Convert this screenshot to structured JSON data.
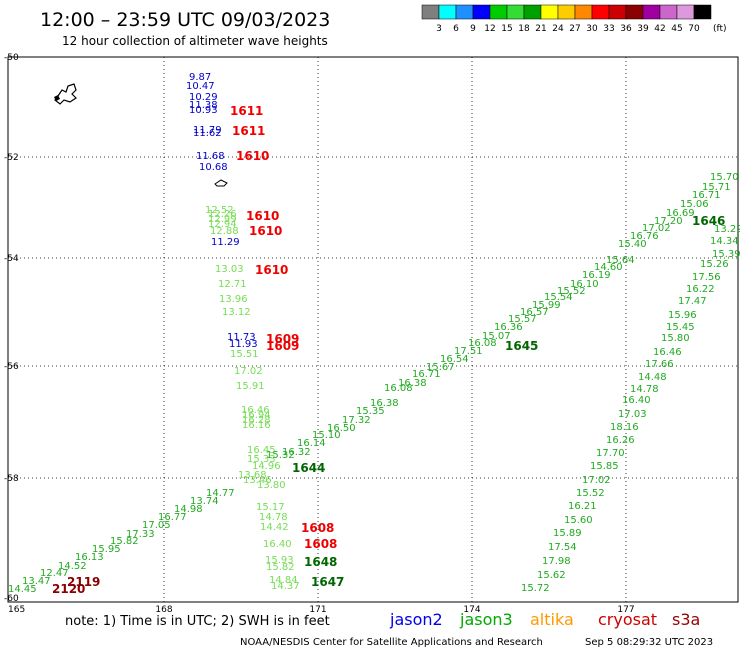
{
  "header": {
    "title": "12:00 – 23:59 UTC 09/03/2023",
    "subtitle": "12 hour collection of altimeter wave heights"
  },
  "color_scale": {
    "colors": [
      "#7f7f7f",
      "#00ffff",
      "#1e90ff",
      "#0000ff",
      "#00cc00",
      "#33dd33",
      "#00a000",
      "#ffff00",
      "#ffcc00",
      "#ff8800",
      "#ff0000",
      "#cc0000",
      "#8b0000",
      "#a000a0",
      "#cc66cc",
      "#dd99dd",
      "#000000"
    ],
    "labels": [
      "3",
      "6",
      "9",
      "12",
      "15",
      "18",
      "21",
      "24",
      "27",
      "30",
      "33",
      "36",
      "39",
      "42",
      "45",
      "70"
    ],
    "unit": "(ft)"
  },
  "axes": {
    "x_labels": [
      "165",
      "168",
      "171",
      "174",
      "177"
    ],
    "y_labels": [
      "-50",
      "-52",
      "-54",
      "-56",
      "-58",
      "-60"
    ]
  },
  "tracks": [
    {
      "sat": "jason2",
      "color": "#0000cc",
      "points": [
        {
          "v": "9.87"
        },
        {
          "v": "10.47"
        },
        {
          "v": "10.29"
        },
        {
          "v": "11.38"
        },
        {
          "v": "10.93"
        },
        {
          "v": "11.79"
        },
        {
          "v": "11.62"
        },
        {
          "v": "11.68"
        },
        {
          "v": "10.68"
        },
        {
          "v": "11.29"
        },
        {
          "v": "11.73"
        },
        {
          "v": "11.93"
        }
      ]
    },
    {
      "sat": "jason3-a",
      "color": "#77dd55",
      "points": [
        {
          "v": "12.52"
        },
        {
          "v": "12.26"
        },
        {
          "v": "12.99"
        },
        {
          "v": "12.94"
        },
        {
          "v": "12.88"
        },
        {
          "v": "13.03"
        },
        {
          "v": "12.71"
        },
        {
          "v": "13.96"
        },
        {
          "v": "13.12"
        },
        {
          "v": "15.51"
        },
        {
          "v": "17.02"
        },
        {
          "v": "15.91"
        },
        {
          "v": "16.46"
        },
        {
          "v": "16.94"
        },
        {
          "v": "16.28"
        },
        {
          "v": "16.16"
        },
        {
          "v": "16.45"
        },
        {
          "v": "15.33"
        },
        {
          "v": "14.96"
        },
        {
          "v": "13.68"
        },
        {
          "v": "13.46"
        },
        {
          "v": "13.80"
        },
        {
          "v": "15.17"
        },
        {
          "v": "14.78"
        },
        {
          "v": "14.42"
        },
        {
          "v": "16.40"
        },
        {
          "v": "15.93"
        },
        {
          "v": "15.82"
        },
        {
          "v": "14.84"
        },
        {
          "v": "14.37"
        }
      ]
    },
    {
      "sat": "jason3-b",
      "color": "#22aa22",
      "points": [
        {
          "v": "14.45"
        },
        {
          "v": "13.47"
        },
        {
          "v": "12.47"
        },
        {
          "v": "14.52"
        },
        {
          "v": "16.13"
        },
        {
          "v": "15.95"
        },
        {
          "v": "15.82"
        },
        {
          "v": "17.33"
        },
        {
          "v": "17.05"
        },
        {
          "v": "16.77"
        },
        {
          "v": "14.98"
        },
        {
          "v": "13.74"
        },
        {
          "v": "14.77"
        },
        {
          "v": "15.32"
        },
        {
          "v": "16.32"
        },
        {
          "v": "16.14"
        },
        {
          "v": "15.10"
        },
        {
          "v": "16.50"
        },
        {
          "v": "17.32"
        },
        {
          "v": "15.35"
        },
        {
          "v": "16.38"
        },
        {
          "v": "16.08"
        },
        {
          "v": "16.38"
        },
        {
          "v": "16.71"
        },
        {
          "v": "15.67"
        },
        {
          "v": "16.54"
        },
        {
          "v": "17.51"
        },
        {
          "v": "16.08"
        },
        {
          "v": "15.07"
        },
        {
          "v": "16.36"
        },
        {
          "v": "15.57"
        },
        {
          "v": "16.57"
        },
        {
          "v": "15.99"
        },
        {
          "v": "15.54"
        },
        {
          "v": "15.52"
        },
        {
          "v": "16.10"
        },
        {
          "v": "16.19"
        },
        {
          "v": "14.60"
        },
        {
          "v": "15.64"
        },
        {
          "v": "15.40"
        },
        {
          "v": "16.76"
        },
        {
          "v": "17.02"
        },
        {
          "v": "17.20"
        },
        {
          "v": "16.69"
        },
        {
          "v": "15.06"
        },
        {
          "v": "16.71"
        },
        {
          "v": "15.71"
        },
        {
          "v": "15.70"
        }
      ]
    },
    {
      "sat": "jason3-c",
      "color": "#22aa22",
      "points": [
        {
          "v": "13.22"
        },
        {
          "v": "14.34"
        },
        {
          "v": "15.26"
        },
        {
          "v": "17.56"
        },
        {
          "v": "16.22"
        },
        {
          "v": "17.47"
        },
        {
          "v": "15.96"
        },
        {
          "v": "15.45"
        },
        {
          "v": "15.80"
        },
        {
          "v": "16.46"
        },
        {
          "v": "17.66"
        },
        {
          "v": "14.48"
        },
        {
          "v": "14.78"
        },
        {
          "v": "16.40"
        },
        {
          "v": "17.03"
        },
        {
          "v": "18.16"
        },
        {
          "v": "16.26"
        },
        {
          "v": "17.70"
        },
        {
          "v": "15.85"
        },
        {
          "v": "17.02"
        },
        {
          "v": "15.52"
        },
        {
          "v": "16.21"
        },
        {
          "v": "15.60"
        },
        {
          "v": "15.89"
        },
        {
          "v": "17.54"
        },
        {
          "v": "17.98"
        },
        {
          "v": "15.62"
        },
        {
          "v": "15.72"
        },
        {
          "v": "15.39"
        }
      ]
    }
  ],
  "time_labels": [
    {
      "t": "1611",
      "color": "#ee0000"
    },
    {
      "t": "1611",
      "color": "#ee0000"
    },
    {
      "t": "1610",
      "color": "#ee0000"
    },
    {
      "t": "1610",
      "color": "#ee0000"
    },
    {
      "t": "1610",
      "color": "#ee0000"
    },
    {
      "t": "1610",
      "color": "#ee0000"
    },
    {
      "t": "1609",
      "color": "#ee0000"
    },
    {
      "t": "1609",
      "color": "#ee0000"
    },
    {
      "t": "1608",
      "color": "#ee0000"
    },
    {
      "t": "1608",
      "color": "#ee0000"
    },
    {
      "t": "1648",
      "color": "#006600"
    },
    {
      "t": "1647",
      "color": "#006600"
    },
    {
      "t": "1646",
      "color": "#006600"
    },
    {
      "t": "1645",
      "color": "#006600"
    },
    {
      "t": "1644",
      "color": "#006600"
    },
    {
      "t": "2119",
      "color": "#880000"
    },
    {
      "t": "2120",
      "color": "#880000"
    }
  ],
  "footer": {
    "note": "note:  1) Time is in UTC;  2) SWH is in feet",
    "satellites": [
      {
        "name": "jason2",
        "color": "#0000ee"
      },
      {
        "name": "jason3",
        "color": "#00aa00"
      },
      {
        "name": "altika",
        "color": "#ff9900"
      },
      {
        "name": "cryosat",
        "color": "#cc0000"
      },
      {
        "name": "s3a",
        "color": "#990000"
      }
    ],
    "credit": "NOAA/NESDIS Center for Satellite Applications and Research",
    "generated": "Sep  5 08:29:32 UTC 2023"
  }
}
